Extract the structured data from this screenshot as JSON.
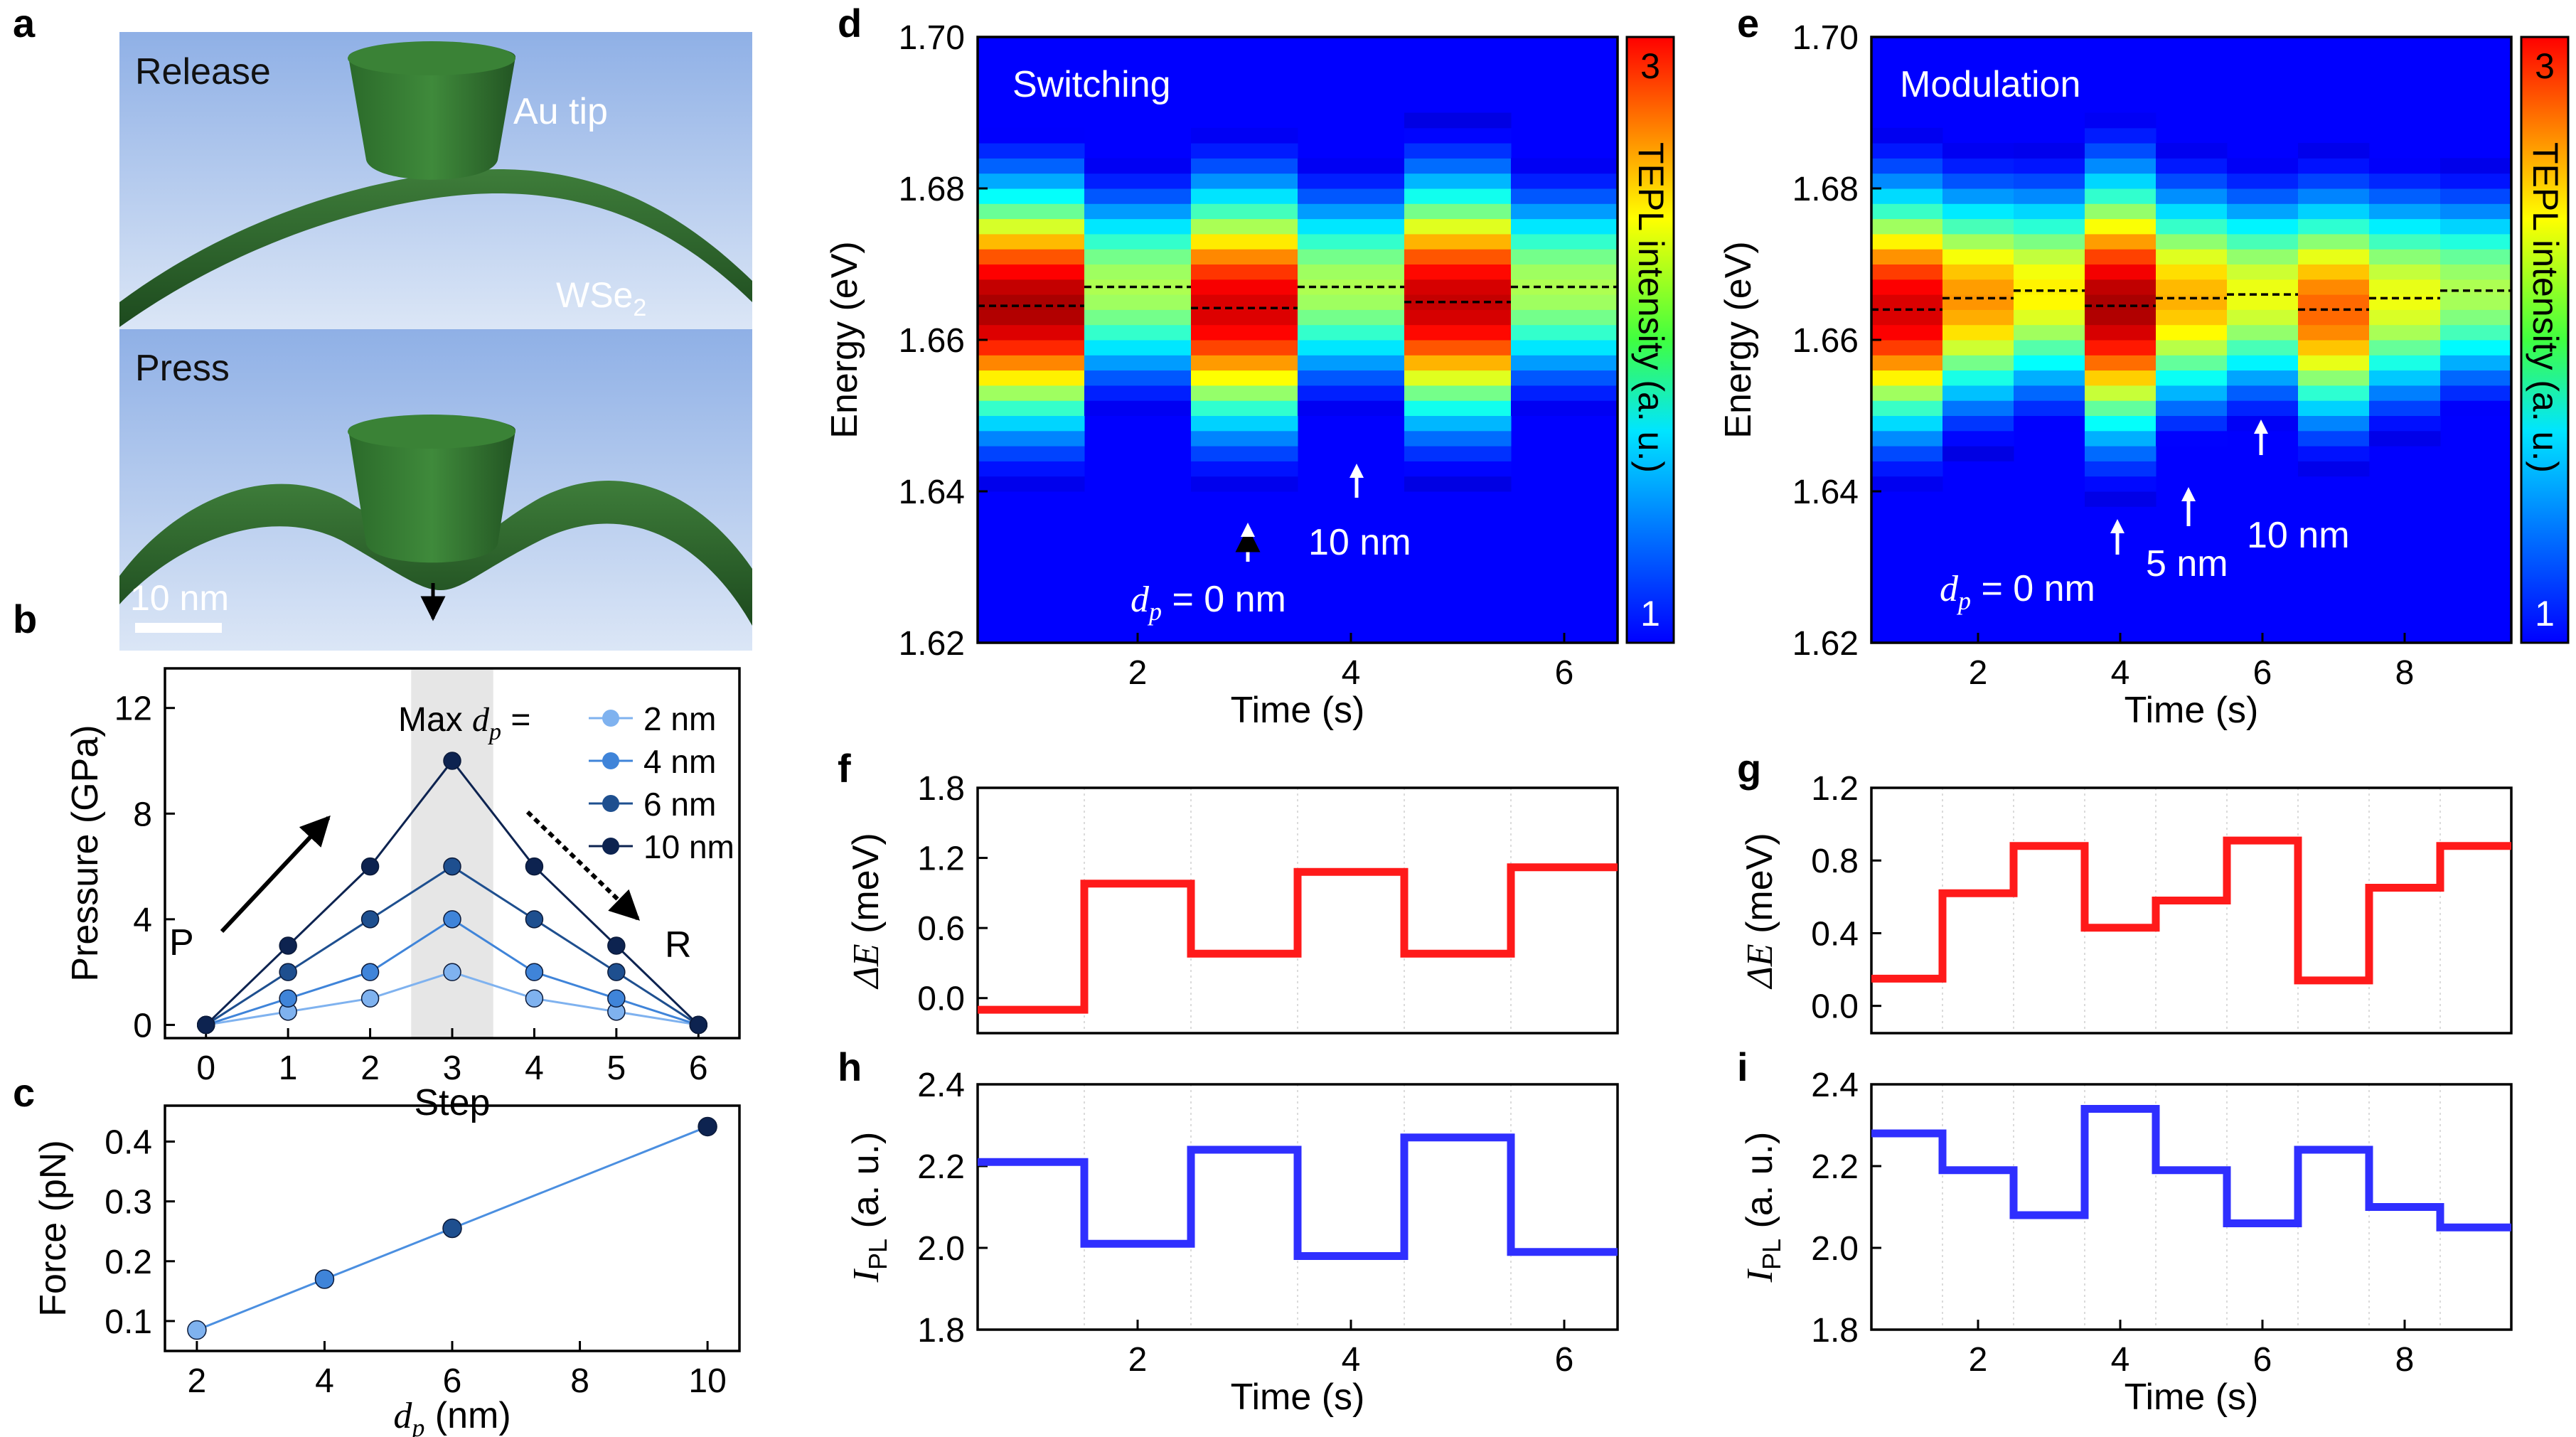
{
  "colors": {
    "red_line": "#ff1a1a",
    "blue_line": "#2f2fff",
    "connector": "#4b8fe0",
    "press_arrow": "#000000"
  },
  "panel_a": {
    "letter": "a",
    "release_label": "Release",
    "press_label": "Press",
    "tip_label": "Au tip",
    "material_label": "WSe",
    "material_sub": "2",
    "scale_label": "10 nm"
  },
  "panel_b": {
    "letter": "b",
    "legend_title_prefix": "Max ",
    "legend_title_var": "d",
    "legend_title_sub": "p",
    "legend_title_suffix": " =",
    "p_label": "P",
    "r_label": "R",
    "colors": [
      "#7fb2ef",
      "#3f84d9",
      "#1e4f8f",
      "#0d2350"
    ]
  },
  "panel_c": {
    "letter": "c"
  },
  "panel_d": {
    "letter": "d",
    "title": "Switching",
    "annotations": [
      {
        "var": "d",
        "sub": "p",
        "text": " = 0 nm"
      },
      {
        "text": "10 nm"
      }
    ]
  },
  "panel_e": {
    "letter": "e",
    "title": "Modulation",
    "annotations": [
      {
        "var": "d",
        "sub": "p",
        "text": " = 0 nm"
      },
      {
        "text": "5 nm"
      },
      {
        "text": "10 nm"
      }
    ]
  },
  "colorbar": {
    "label": "TEPL intensity (a. u.)",
    "max_label": "3",
    "min_label": "1"
  },
  "panel_f": {
    "letter": "f"
  },
  "panel_g": {
    "letter": "g"
  },
  "panel_h": {
    "letter": "h"
  },
  "panel_i": {
    "letter": "i"
  },
  "chart_data": [
    {
      "id": "b",
      "type": "line",
      "xlabel": "Step",
      "ylabel": "Pressure (GPa)",
      "xlim": [
        -0.5,
        6.5
      ],
      "ylim": [
        -0.5,
        13.5
      ],
      "xticks": [
        0,
        1,
        2,
        3,
        4,
        5,
        6
      ],
      "yticks": [
        0,
        4,
        8,
        12
      ],
      "highlight_band": [
        2.5,
        3.5
      ],
      "x": [
        0,
        1,
        2,
        3,
        4,
        5,
        6
      ],
      "series": [
        {
          "name": "2 nm",
          "values": [
            0,
            0.5,
            1,
            2,
            1,
            0.5,
            0
          ]
        },
        {
          "name": "4 nm",
          "values": [
            0,
            1,
            2,
            4,
            2,
            1,
            0
          ]
        },
        {
          "name": "6 nm",
          "values": [
            0,
            2,
            4,
            6,
            4,
            2,
            0
          ]
        },
        {
          "name": "10 nm",
          "values": [
            0,
            3,
            6,
            10,
            6,
            3,
            0
          ]
        }
      ]
    },
    {
      "id": "c",
      "type": "line",
      "xlabel_var": "d",
      "xlabel_sub": "p",
      "xlabel_unit": " (nm)",
      "ylabel": "Force (pN)",
      "xlim": [
        1.5,
        10.5
      ],
      "ylim": [
        0.05,
        0.46
      ],
      "xticks": [
        2,
        4,
        6,
        8,
        10
      ],
      "yticks": [
        0.1,
        0.2,
        0.3,
        0.4
      ],
      "x": [
        2,
        4,
        6,
        10
      ],
      "values": [
        0.085,
        0.17,
        0.255,
        0.425
      ]
    },
    {
      "id": "d",
      "type": "heatmap",
      "xlabel": "Time (s)",
      "ylabel": "Energy (eV)",
      "xlim": [
        0.5,
        6.5
      ],
      "ylim": [
        1.62,
        1.7
      ],
      "xticks": [
        2,
        4,
        6
      ],
      "yticks": [
        1.62,
        1.64,
        1.66,
        1.68,
        1.7
      ],
      "columns": [
        {
          "t0": 0.5,
          "t1": 1.5,
          "amp": 1.0,
          "width": 0.0145,
          "center": 1.6645
        },
        {
          "t0": 1.5,
          "t1": 2.5,
          "amp": 0.55,
          "width": 0.0115,
          "center": 1.667
        },
        {
          "t0": 2.5,
          "t1": 3.5,
          "amp": 0.95,
          "width": 0.0145,
          "center": 1.6642
        },
        {
          "t0": 3.5,
          "t1": 4.5,
          "amp": 0.55,
          "width": 0.0115,
          "center": 1.667
        },
        {
          "t0": 4.5,
          "t1": 5.5,
          "amp": 0.97,
          "width": 0.0145,
          "center": 1.665
        },
        {
          "t0": 5.5,
          "t1": 6.5,
          "amp": 0.55,
          "width": 0.0115,
          "center": 1.667
        }
      ]
    },
    {
      "id": "e",
      "type": "heatmap",
      "xlabel": "Time (s)",
      "ylabel": "Energy (eV)",
      "xlim": [
        0.5,
        9.5
      ],
      "ylim": [
        1.62,
        1.7
      ],
      "xticks": [
        2,
        4,
        6,
        8
      ],
      "yticks": [
        1.62,
        1.64,
        1.66,
        1.68,
        1.7
      ],
      "columns": [
        {
          "t0": 0.5,
          "t1": 1.5,
          "amp": 0.95,
          "width": 0.0145,
          "center": 1.664
        },
        {
          "t0": 1.5,
          "t1": 2.5,
          "amp": 0.75,
          "width": 0.013,
          "center": 1.6655
        },
        {
          "t0": 2.5,
          "t1": 3.5,
          "amp": 0.65,
          "width": 0.0125,
          "center": 1.6665
        },
        {
          "t0": 3.5,
          "t1": 4.5,
          "amp": 1.0,
          "width": 0.0155,
          "center": 1.6645
        },
        {
          "t0": 4.5,
          "t1": 5.5,
          "amp": 0.72,
          "width": 0.013,
          "center": 1.6655
        },
        {
          "t0": 5.5,
          "t1": 6.5,
          "amp": 0.62,
          "width": 0.012,
          "center": 1.666
        },
        {
          "t0": 6.5,
          "t1": 7.5,
          "amp": 0.8,
          "width": 0.0135,
          "center": 1.664
        },
        {
          "t0": 7.5,
          "t1": 8.5,
          "amp": 0.62,
          "width": 0.0125,
          "center": 1.6655
        },
        {
          "t0": 8.5,
          "t1": 9.5,
          "amp": 0.55,
          "width": 0.0115,
          "center": 1.6665
        }
      ]
    },
    {
      "id": "f",
      "type": "line",
      "step": true,
      "ylabel_var": "ΔE",
      "ylabel_unit": " (meV)",
      "xlim": [
        0.5,
        6.5
      ],
      "ylim": [
        -0.3,
        1.8
      ],
      "yticks": [
        0.0,
        0.6,
        1.2,
        1.8
      ],
      "ytick_labels": [
        "0.0",
        "0.6",
        "1.2",
        "1.8"
      ],
      "x": [
        1,
        2,
        3,
        4,
        5,
        6
      ],
      "values": [
        -0.1,
        0.98,
        0.38,
        1.08,
        0.38,
        1.12
      ]
    },
    {
      "id": "g",
      "type": "line",
      "step": true,
      "ylabel_var": "ΔE",
      "ylabel_unit": " (meV)",
      "xlim": [
        0.5,
        9.5
      ],
      "ylim": [
        -0.15,
        1.2
      ],
      "yticks": [
        0.0,
        0.4,
        0.8,
        1.2
      ],
      "ytick_labels": [
        "0.0",
        "0.4",
        "0.8",
        "1.2"
      ],
      "x": [
        1,
        2,
        3,
        4,
        5,
        6,
        7,
        8,
        9
      ],
      "values": [
        0.15,
        0.62,
        0.88,
        0.43,
        0.58,
        0.91,
        0.14,
        0.65,
        0.88
      ]
    },
    {
      "id": "h",
      "type": "line",
      "step": true,
      "xlabel": "Time (s)",
      "ylabel_var": "I",
      "ylabel_sub": "PL",
      "ylabel_unit": " (a. u.)",
      "xlim": [
        0.5,
        6.5
      ],
      "ylim": [
        1.8,
        2.4
      ],
      "xticks": [
        2,
        4,
        6
      ],
      "yticks": [
        1.8,
        2.0,
        2.2,
        2.4
      ],
      "ytick_labels": [
        "1.8",
        "2.0",
        "2.2",
        "2.4"
      ],
      "x": [
        1,
        2,
        3,
        4,
        5,
        6
      ],
      "values": [
        2.21,
        2.01,
        2.24,
        1.98,
        2.27,
        1.99
      ]
    },
    {
      "id": "i",
      "type": "line",
      "step": true,
      "xlabel": "Time (s)",
      "ylabel_var": "I",
      "ylabel_sub": "PL",
      "ylabel_unit": " (a. u.)",
      "xlim": [
        0.5,
        9.5
      ],
      "ylim": [
        1.8,
        2.4
      ],
      "xticks": [
        2,
        4,
        6,
        8
      ],
      "yticks": [
        1.8,
        2.0,
        2.2,
        2.4
      ],
      "ytick_labels": [
        "1.8",
        "2.0",
        "2.2",
        "2.4"
      ],
      "x": [
        1,
        2,
        3,
        4,
        5,
        6,
        7,
        8,
        9
      ],
      "values": [
        2.28,
        2.19,
        2.08,
        2.34,
        2.19,
        2.06,
        2.24,
        2.1,
        2.05
      ]
    }
  ]
}
